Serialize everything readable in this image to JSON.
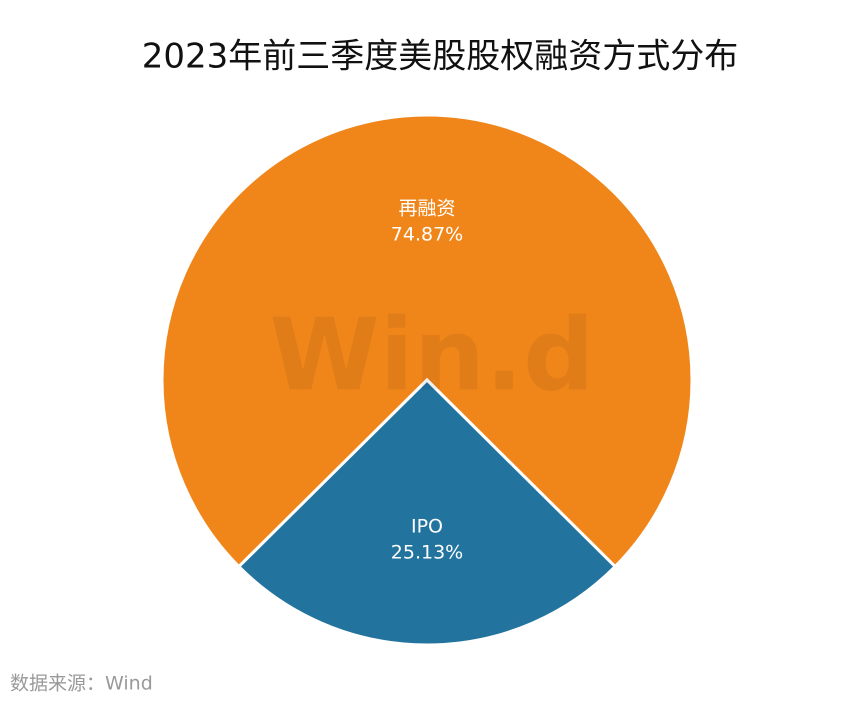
{
  "chart_data": {
    "type": "pie",
    "title": "2023年前三季度美股股权融资方式分布",
    "categories": [
      "再融资",
      "IPO"
    ],
    "values": [
      74.87,
      25.13
    ],
    "value_labels": [
      "74.87%",
      "25.13%"
    ],
    "colors": [
      "#f0861a",
      "#23739f"
    ],
    "watermark": "Win.d",
    "source": "数据来源：Wind"
  }
}
